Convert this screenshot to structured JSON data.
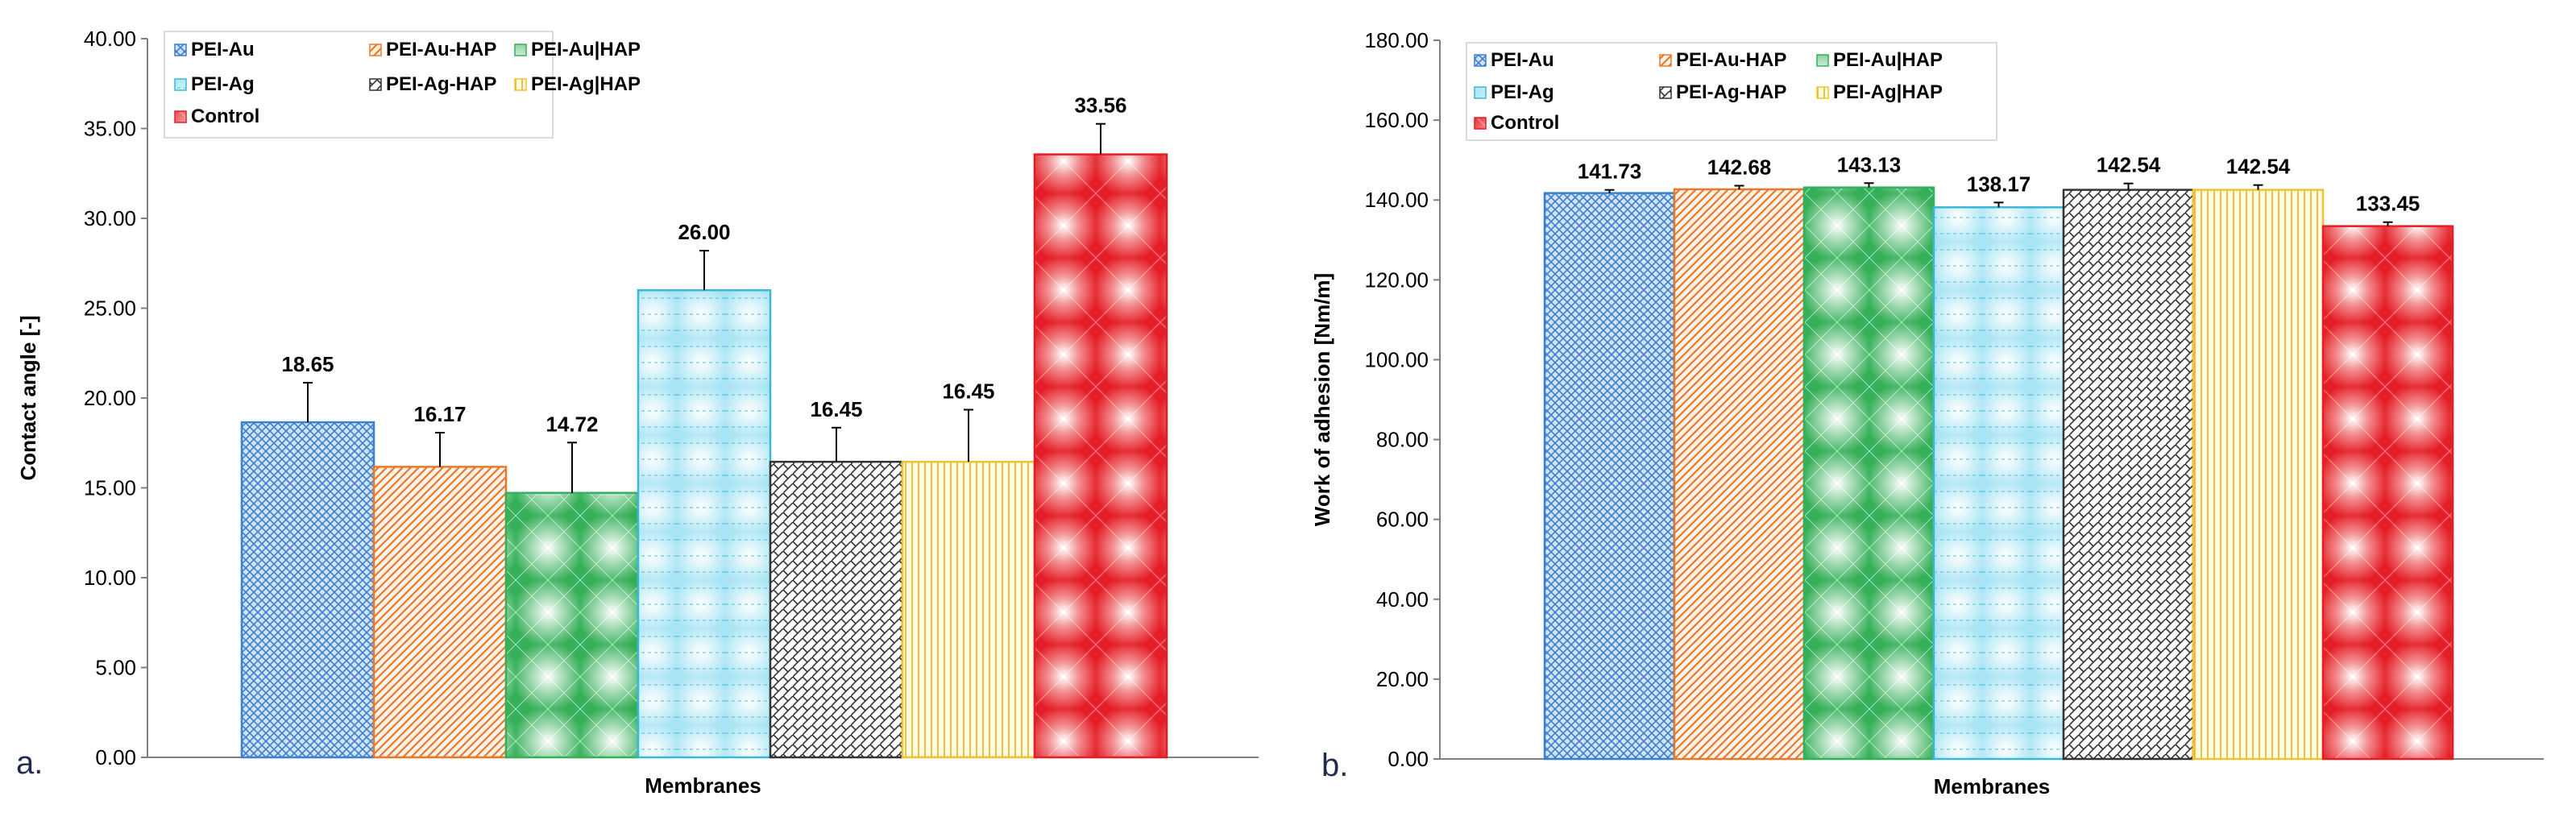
{
  "chart_data": [
    {
      "type": "bar",
      "panel_label": "a.",
      "xlabel": "Membranes",
      "ylabel": "Contact angle [-]",
      "ylim": [
        0,
        40
      ],
      "ytick_step": 5,
      "yticks": [
        "0.00",
        "5.00",
        "10.00",
        "15.00",
        "20.00",
        "25.00",
        "30.00",
        "35.00",
        "40.00"
      ],
      "categories": [
        "PEI-Au",
        "PEI-Au-HAP",
        "PEI-Au|HAP",
        "PEI-Ag",
        "PEI-Ag-HAP",
        "PEI-Ag|HAP",
        "Control"
      ],
      "values": [
        18.65,
        16.17,
        14.72,
        26.0,
        16.45,
        16.45,
        33.56
      ],
      "errors": [
        2.2,
        1.9,
        2.8,
        2.2,
        1.9,
        2.9,
        1.7
      ],
      "value_labels": [
        "18.65",
        "16.17",
        "14.72",
        "26.00",
        "16.45",
        "16.45",
        "33.56"
      ],
      "legend": [
        "PEI-Au",
        "PEI-Au-HAP",
        "PEI-Au|HAP",
        "PEI-Ag",
        "PEI-Ag-HAP",
        "PEI-Ag|HAP",
        "Control"
      ],
      "legend_position": "top-left"
    },
    {
      "type": "bar",
      "panel_label": "b.",
      "xlabel": "Membranes",
      "ylabel": "Work of adhesion [Nm/m]",
      "ylim": [
        0,
        180
      ],
      "ytick_step": 20,
      "yticks": [
        "0.00",
        "20.00",
        "40.00",
        "60.00",
        "80.00",
        "100.00",
        "120.00",
        "140.00",
        "160.00",
        "180.00"
      ],
      "categories": [
        "PEI-Au",
        "PEI-Au-HAP",
        "PEI-Au|HAP",
        "PEI-Ag",
        "PEI-Ag-HAP",
        "PEI-Ag|HAP",
        "Control"
      ],
      "values": [
        141.73,
        142.68,
        143.13,
        138.17,
        142.54,
        142.54,
        133.45
      ],
      "errors": [
        0.8,
        0.9,
        1.1,
        1.2,
        1.6,
        1.2,
        1.0
      ],
      "value_labels": [
        "141.73",
        "142.68",
        "143.13",
        "138.17",
        "142.54",
        "142.54",
        "133.45"
      ],
      "legend": [
        "PEI-Au",
        "PEI-Au-HAP",
        "PEI-Au|HAP",
        "PEI-Ag",
        "PEI-Ag-HAP",
        "PEI-Ag|HAP",
        "Control"
      ],
      "legend_position": "top-left"
    }
  ],
  "series_colors": [
    "#3a7fd0",
    "#e8792b",
    "#35b05a",
    "#39b8d8",
    "#333333",
    "#f2c12e",
    "#e41e26"
  ]
}
